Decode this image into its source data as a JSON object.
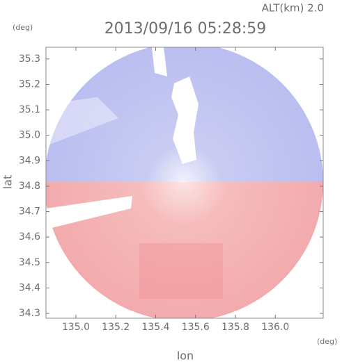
{
  "chart_data": {
    "type": "image",
    "title": "2013/09/16 05:28:59",
    "annotation": "ALT(km) 2.0",
    "y_unit": "(deg)",
    "x_unit": "(deg)",
    "xlabel": "lon",
    "ylabel": "lat",
    "xlim": [
      134.85,
      136.24
    ],
    "ylim": [
      34.281,
      35.346
    ],
    "xticks": [
      {
        "value": 135.0,
        "label": "135.0"
      },
      {
        "value": 135.2,
        "label": "135.2"
      },
      {
        "value": 135.4,
        "label": "135.4"
      },
      {
        "value": 135.6,
        "label": "135.6"
      },
      {
        "value": 135.8,
        "label": "135.8"
      },
      {
        "value": 136.0,
        "label": "136.0"
      }
    ],
    "yticks": [
      {
        "value": 34.3,
        "label": "34.3"
      },
      {
        "value": 34.4,
        "label": "34.4"
      },
      {
        "value": 34.5,
        "label": "34.5"
      },
      {
        "value": 34.6,
        "label": "34.6"
      },
      {
        "value": 34.7,
        "label": "34.7"
      },
      {
        "value": 34.8,
        "label": "34.8"
      },
      {
        "value": 34.9,
        "label": "34.9"
      },
      {
        "value": 35.0,
        "label": "35.0"
      },
      {
        "value": 35.1,
        "label": "35.1"
      },
      {
        "value": 35.2,
        "label": "35.2"
      },
      {
        "value": 35.3,
        "label": "35.3"
      }
    ]
  }
}
